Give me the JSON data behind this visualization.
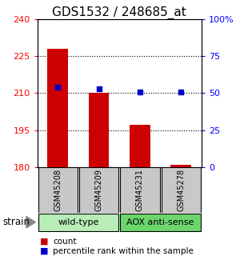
{
  "title": "GDS1532 / 248685_at",
  "samples": [
    "GSM45208",
    "GSM45209",
    "GSM45231",
    "GSM45278"
  ],
  "count_values": [
    228,
    210,
    197,
    181
  ],
  "percentile_values": [
    54,
    53,
    51,
    51
  ],
  "ylim_left": [
    180,
    240
  ],
  "ylim_right": [
    0,
    100
  ],
  "yticks_left": [
    180,
    195,
    210,
    225,
    240
  ],
  "yticks_right": [
    0,
    25,
    50,
    75,
    100
  ],
  "ytick_right_labels": [
    "0",
    "25",
    "50",
    "75",
    "100%"
  ],
  "bar_color": "#cc0000",
  "dot_color": "#0000cc",
  "bar_width": 0.5,
  "sample_box_color": "#c8c8c8",
  "group_spans": [
    [
      0,
      1,
      "wild-type",
      "#b8edb8"
    ],
    [
      2,
      3,
      "AOX anti-sense",
      "#6cd66c"
    ]
  ],
  "strain_label": "strain",
  "legend_count_label": "count",
  "legend_percentile_label": "percentile rank within the sample",
  "title_fontsize": 11,
  "tick_fontsize": 8,
  "sample_fontsize": 7,
  "group_fontsize": 8,
  "legend_fontsize": 7.5
}
